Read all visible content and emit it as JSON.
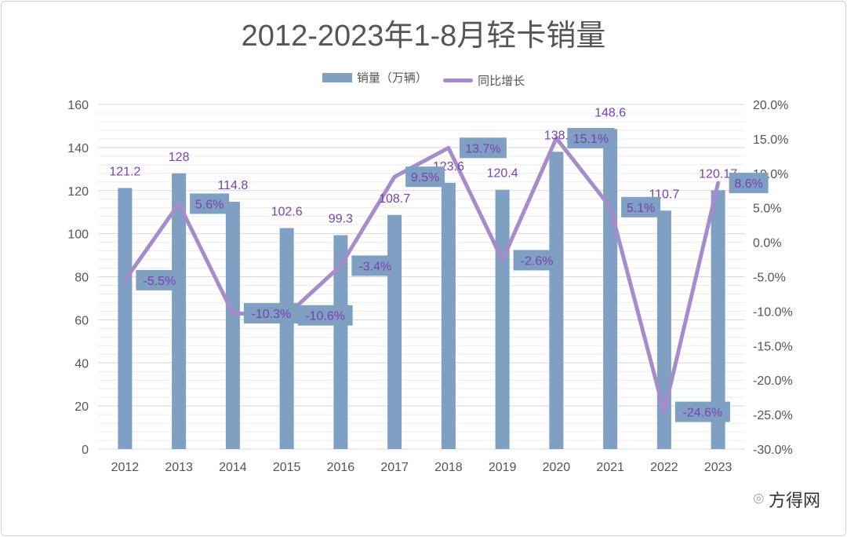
{
  "chart_data": {
    "type": "bar+line",
    "title": "2012-2023年1-8月轻卡销量",
    "categories": [
      "2012",
      "2013",
      "2014",
      "2015",
      "2016",
      "2017",
      "2018",
      "2019",
      "2020",
      "2021",
      "2022",
      "2023"
    ],
    "series": [
      {
        "name": "销量（万辆）",
        "type": "bar",
        "axis": "left",
        "values": [
          121.2,
          128,
          114.8,
          102.6,
          99.3,
          108.7,
          123.6,
          120.4,
          138,
          148.6,
          110.7,
          120.17
        ],
        "labels": [
          "121.2",
          "128",
          "114.8",
          "102.6",
          "99.3",
          "108.7",
          "123.6",
          "120.4",
          "138.",
          "148.6",
          "110.7",
          "120.17"
        ],
        "color": "#7f9fc3"
      },
      {
        "name": "同比增长",
        "type": "line",
        "axis": "right",
        "values": [
          -5.5,
          5.6,
          -10.3,
          -10.6,
          -3.4,
          9.5,
          13.7,
          -2.6,
          15.1,
          5.1,
          -24.6,
          8.6
        ],
        "labels": [
          "-5.5%",
          "5.6%",
          "-10.3%",
          "-10.6%",
          "-3.4%",
          "9.5%",
          "13.7%",
          "-2.6%",
          "15.1%",
          "5.1%",
          "-24.6%",
          "8.6%"
        ],
        "color": "#a68ccb"
      }
    ],
    "left_axis": {
      "ylim": [
        0,
        160
      ],
      "ticks": [
        "0",
        "20",
        "40",
        "60",
        "80",
        "100",
        "120",
        "140",
        "160"
      ]
    },
    "right_axis": {
      "ylim": [
        -30,
        20
      ],
      "ticks": [
        "-30.0%",
        "-25.0%",
        "-20.0%",
        "-15.0%",
        "-10.0%",
        "-5.0%",
        "0.0%",
        "5.0%",
        "10.0%",
        "15.0%",
        "20.0%"
      ]
    },
    "legend_position": "top",
    "grid": true
  },
  "watermark": "方得网"
}
